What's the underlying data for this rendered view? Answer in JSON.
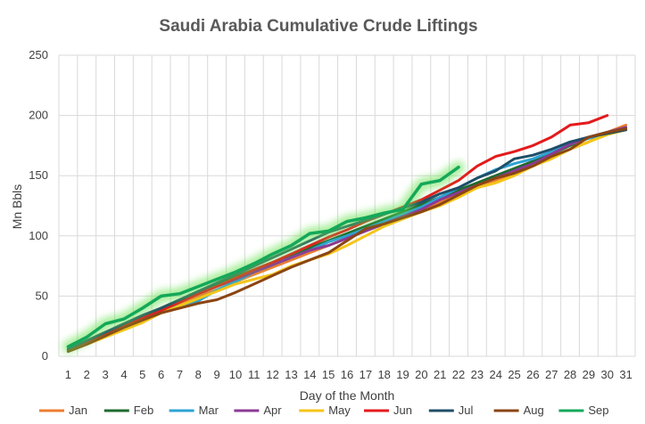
{
  "chart_data": {
    "type": "line",
    "title": "Saudi Arabia Cumulative Crude Liftings",
    "xlabel": "Day of the Month",
    "ylabel": "Mn Bbls",
    "ylim": [
      0,
      250
    ],
    "yticks": [
      0,
      50,
      100,
      150,
      200,
      250
    ],
    "x": [
      1,
      2,
      3,
      4,
      5,
      6,
      7,
      8,
      9,
      10,
      11,
      12,
      13,
      14,
      15,
      16,
      17,
      18,
      19,
      20,
      21,
      22,
      23,
      24,
      25,
      26,
      27,
      28,
      29,
      30,
      31
    ],
    "grid": true,
    "legend_position": "bottom",
    "series": [
      {
        "name": "Jan",
        "color": "#ed7d31",
        "highlight": false,
        "values": [
          5,
          12,
          20,
          26,
          32,
          38,
          44,
          50,
          55,
          62,
          68,
          74,
          80,
          86,
          92,
          98,
          104,
          110,
          116,
          122,
          128,
          134,
          140,
          146,
          152,
          158,
          165,
          172,
          178,
          186,
          192
        ]
      },
      {
        "name": "Feb",
        "color": "#1e6b2e",
        "highlight": false,
        "values": [
          5,
          12,
          18,
          25,
          33,
          40,
          47,
          54,
          60,
          66,
          72,
          78,
          84,
          90,
          96,
          102,
          108,
          114,
          120,
          126,
          132,
          138,
          144,
          150,
          156,
          162,
          168,
          175,
          182,
          186,
          190
        ]
      },
      {
        "name": "Mar",
        "color": "#2ea3d4",
        "highlight": false,
        "values": [
          5,
          11,
          17,
          25,
          32,
          38,
          42,
          46,
          55,
          62,
          70,
          76,
          82,
          88,
          95,
          100,
          106,
          112,
          118,
          124,
          132,
          140,
          148,
          155,
          160,
          164,
          170,
          176,
          181,
          185,
          188
        ]
      },
      {
        "name": "Apr",
        "color": "#8b3a96",
        "highlight": false,
        "values": [
          6,
          13,
          20,
          27,
          34,
          40,
          46,
          52,
          58,
          64,
          70,
          76,
          82,
          88,
          92,
          98,
          104,
          110,
          116,
          122,
          130,
          136,
          142,
          148,
          154,
          160,
          168,
          176,
          182,
          186,
          190
        ]
      },
      {
        "name": "May",
        "color": "#f5c518",
        "highlight": false,
        "values": [
          5,
          10,
          16,
          22,
          28,
          36,
          42,
          48,
          54,
          60,
          64,
          68,
          75,
          80,
          85,
          92,
          100,
          108,
          114,
          120,
          125,
          132,
          140,
          144,
          150,
          158,
          164,
          172,
          178,
          184,
          188
        ]
      },
      {
        "name": "Jun",
        "color": "#e31a1c",
        "highlight": false,
        "values": [
          6,
          12,
          18,
          25,
          32,
          38,
          45,
          52,
          58,
          65,
          72,
          78,
          85,
          92,
          99,
          105,
          112,
          118,
          124,
          130,
          138,
          146,
          158,
          166,
          170,
          175,
          182,
          192,
          194,
          200,
          null
        ]
      },
      {
        "name": "Jul",
        "color": "#1f4e68",
        "highlight": false,
        "values": [
          6,
          13,
          20,
          27,
          34,
          40,
          47,
          54,
          61,
          68,
          75,
          82,
          89,
          96,
          103,
          108,
          113,
          118,
          123,
          128,
          135,
          140,
          148,
          154,
          164,
          167,
          172,
          178,
          182,
          185,
          188
        ]
      },
      {
        "name": "Aug",
        "color": "#8b4513",
        "highlight": false,
        "values": [
          4,
          10,
          17,
          24,
          30,
          36,
          40,
          44,
          47,
          53,
          60,
          67,
          74,
          80,
          86,
          96,
          106,
          110,
          115,
          120,
          126,
          134,
          142,
          148,
          152,
          158,
          166,
          172,
          182,
          186,
          189
        ]
      },
      {
        "name": "Sep",
        "color": "#14a85a",
        "highlight": true,
        "values": [
          8,
          16,
          27,
          31,
          40,
          50,
          52,
          58,
          64,
          70,
          77,
          85,
          92,
          102,
          104,
          112,
          115,
          119,
          122,
          143,
          146,
          157,
          null,
          null,
          null,
          null,
          null,
          null,
          null,
          null,
          null
        ]
      }
    ]
  }
}
